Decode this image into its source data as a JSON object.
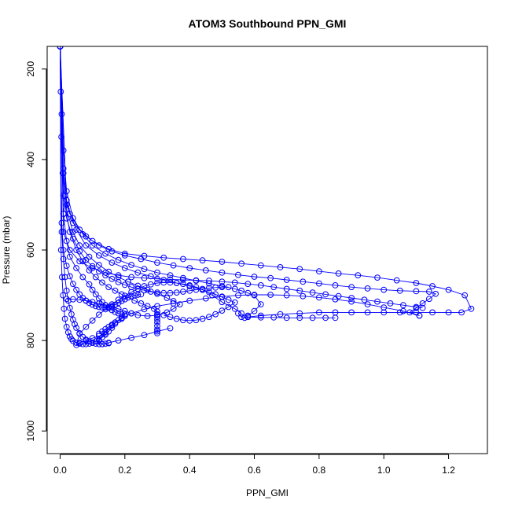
{
  "chart_data": {
    "type": "scatter",
    "title": "ATOM3 Southbound PPN_GMI",
    "xlabel": "PPN_GMI",
    "ylabel": "Pressure (mbar)",
    "xlim": [
      -0.04,
      1.32
    ],
    "ylim": [
      1050,
      150
    ],
    "y_reversed": true,
    "x_ticks": [
      0.0,
      0.2,
      0.4,
      0.6,
      0.8,
      1.0,
      1.2
    ],
    "x_tick_labels": [
      "0.0",
      "0.2",
      "0.4",
      "0.6",
      "0.8",
      "1.0",
      "1.2"
    ],
    "y_ticks": [
      200,
      400,
      600,
      800,
      1000
    ],
    "y_tick_labels": [
      "200",
      "400",
      "600",
      "800",
      "1000"
    ],
    "grid": false,
    "legend": "none",
    "marker": "open-circle",
    "connected": true,
    "color": "#0000ff",
    "series": [
      {
        "x": [
          0.0,
          0.002,
          0.004,
          0.008,
          0.015,
          0.03,
          0.06,
          0.1,
          0.15,
          0.2,
          0.26,
          0.32,
          0.38,
          0.44,
          0.5,
          0.56,
          0.62,
          0.68,
          0.74,
          0.8,
          0.86,
          0.92,
          0.98,
          1.04,
          1.1,
          1.15,
          1.2,
          1.25,
          1.27,
          1.24,
          1.2,
          1.15,
          1.1,
          1.05,
          1.0,
          0.95,
          0.9,
          0.85,
          0.8,
          0.74,
          0.68,
          0.62,
          0.58
        ],
        "y": [
          150,
          250,
          350,
          430,
          480,
          520,
          555,
          580,
          598,
          608,
          613,
          617,
          620,
          623,
          626,
          630,
          634,
          638,
          642,
          647,
          652,
          656,
          661,
          667,
          673,
          680,
          688,
          700,
          730,
          738,
          738,
          738,
          738,
          738,
          738,
          738,
          738,
          738,
          738,
          740,
          742,
          745,
          748
        ]
      },
      {
        "x": [
          0.58,
          0.62,
          0.66,
          0.7,
          0.74,
          0.78,
          0.82,
          0.85
        ],
        "y": [
          748,
          749,
          749,
          750,
          750,
          750,
          750,
          750
        ]
      },
      {
        "x": [
          0.0,
          0.005,
          0.01,
          0.02,
          0.04,
          0.08,
          0.12,
          0.16,
          0.2,
          0.25,
          0.3,
          0.35,
          0.4,
          0.45,
          0.5,
          0.55,
          0.6,
          0.65,
          0.7,
          0.75,
          0.8,
          0.85,
          0.9,
          0.95,
          1.0,
          1.05,
          1.1,
          1.14,
          1.16,
          1.14,
          1.12,
          1.1,
          1.08,
          1.11
        ],
        "y": [
          150,
          300,
          420,
          490,
          540,
          570,
          590,
          603,
          612,
          620,
          628,
          634,
          640,
          645,
          650,
          655,
          659,
          662,
          666,
          670,
          674,
          678,
          682,
          685,
          688,
          690,
          691,
          692,
          697,
          708,
          718,
          728,
          738,
          745
        ]
      },
      {
        "x": [
          1.11,
          1.06,
          1.0,
          0.95,
          0.9,
          0.85,
          0.8,
          0.75,
          0.7,
          0.65,
          0.6,
          0.55,
          0.5,
          0.45,
          0.4,
          0.35,
          0.3,
          0.26,
          0.22,
          0.19,
          0.16,
          0.14,
          0.12,
          0.13,
          0.15,
          0.18,
          0.22,
          0.26,
          0.3,
          0.34
        ],
        "y": [
          745,
          735,
          727,
          720,
          714,
          709,
          705,
          702,
          700,
          699,
          699,
          700,
          703,
          707,
          712,
          718,
          724,
          731,
          740,
          752,
          767,
          782,
          800,
          808,
          805,
          800,
          794,
          788,
          780,
          773
        ]
      },
      {
        "x": [
          0.0,
          0.01,
          0.02,
          0.04,
          0.07,
          0.1,
          0.14,
          0.18,
          0.22,
          0.26,
          0.3,
          0.34,
          0.38,
          0.42,
          0.46,
          0.5,
          0.54,
          0.56,
          0.58,
          0.6,
          0.62,
          0.6,
          0.58,
          0.57,
          0.56,
          0.55
        ],
        "y": [
          150,
          380,
          470,
          530,
          565,
          590,
          608,
          622,
          633,
          642,
          650,
          656,
          662,
          668,
          674,
          680,
          686,
          690,
          695,
          700,
          720,
          735,
          745,
          750,
          748,
          740
        ]
      },
      {
        "x": [
          0.56,
          0.54,
          0.5,
          0.47,
          0.44,
          0.42,
          0.4,
          0.38,
          0.36,
          0.34,
          0.32,
          0.3,
          0.28,
          0.26,
          0.24,
          0.22,
          0.2,
          0.18,
          0.16,
          0.14,
          0.12,
          0.1,
          0.08,
          0.06,
          0.05,
          0.06,
          0.08,
          0.1,
          0.12,
          0.14
        ],
        "y": [
          740,
          730,
          715,
          700,
          688,
          682,
          678,
          675,
          673,
          672,
          672,
          673,
          676,
          680,
          686,
          693,
          701,
          710,
          720,
          731,
          743,
          756,
          770,
          785,
          810,
          805,
          800,
          795,
          790,
          786
        ]
      },
      {
        "x": [
          0.0,
          0.02,
          0.05,
          0.08,
          0.12,
          0.16,
          0.2,
          0.24,
          0.28,
          0.32,
          0.36,
          0.4,
          0.44,
          0.46,
          0.48,
          0.5,
          0.52,
          0.54,
          0.52,
          0.5,
          0.48,
          0.46,
          0.44,
          0.42,
          0.4,
          0.38,
          0.36,
          0.34,
          0.32
        ],
        "y": [
          150,
          500,
          555,
          590,
          612,
          628,
          640,
          650,
          658,
          666,
          673,
          680,
          688,
          693,
          698,
          704,
          710,
          716,
          726,
          734,
          742,
          748,
          752,
          755,
          756,
          755,
          752,
          748,
          744
        ]
      },
      {
        "x": [
          0.0,
          0.02,
          0.04,
          0.06,
          0.09,
          0.12,
          0.15,
          0.18,
          0.21,
          0.24,
          0.27,
          0.3,
          0.33,
          0.35,
          0.37,
          0.35,
          0.33,
          0.3,
          0.27,
          0.24,
          0.22,
          0.2,
          0.18,
          0.16,
          0.14,
          0.12,
          0.1,
          0.08,
          0.06,
          0.04,
          0.02
        ],
        "y": [
          150,
          510,
          560,
          590,
          615,
          633,
          648,
          660,
          670,
          679,
          688,
          697,
          706,
          713,
          720,
          730,
          738,
          744,
          746,
          744,
          740,
          735,
          730,
          726,
          722,
          718,
          715,
          712,
          710,
          709,
          708
        ]
      },
      {
        "x": [
          0.0,
          0.01,
          0.03,
          0.05,
          0.07,
          0.09,
          0.11,
          0.13,
          0.15,
          0.17,
          0.19,
          0.21,
          0.23,
          0.25,
          0.27,
          0.29,
          0.3,
          0.3,
          0.3,
          0.3,
          0.3,
          0.3,
          0.3,
          0.3
        ],
        "y": [
          150,
          480,
          560,
          600,
          625,
          645,
          660,
          672,
          682,
          690,
          698,
          705,
          712,
          718,
          724,
          730,
          736,
          742,
          748,
          754,
          760,
          768,
          776,
          784
        ]
      },
      {
        "x": [
          0.0,
          0.01,
          0.02,
          0.04,
          0.06,
          0.08,
          0.1,
          0.12,
          0.14,
          0.16,
          0.18,
          0.2,
          0.22,
          0.24,
          0.26,
          0.28,
          0.3,
          0.32,
          0.34,
          0.36,
          0.38,
          0.4,
          0.42,
          0.44,
          0.46,
          0.48,
          0.5,
          0.52
        ],
        "y": [
          150,
          430,
          530,
          575,
          603,
          622,
          636,
          647,
          656,
          664,
          671,
          677,
          682,
          686,
          689,
          692,
          694,
          695,
          695,
          694,
          692,
          690,
          688,
          686,
          684,
          683,
          682,
          682
        ]
      },
      {
        "x": [
          0.0,
          0.01,
          0.02,
          0.03,
          0.05,
          0.07,
          0.09,
          0.1,
          0.11,
          0.12,
          0.13,
          0.14,
          0.15,
          0.16,
          0.17,
          0.18,
          0.19,
          0.2,
          0.2,
          0.19,
          0.18,
          0.17,
          0.16,
          0.15,
          0.14,
          0.13,
          0.12
        ],
        "y": [
          150,
          520,
          580,
          615,
          640,
          660,
          676,
          688,
          698,
          707,
          715,
          722,
          728,
          733,
          737,
          740,
          742,
          743,
          746,
          750,
          755,
          760,
          765,
          770,
          775,
          780,
          785
        ]
      },
      {
        "x": [
          0.0,
          0.005,
          0.01,
          0.02,
          0.03,
          0.04,
          0.05,
          0.06,
          0.07,
          0.08,
          0.09,
          0.1,
          0.11,
          0.12,
          0.13,
          0.14,
          0.15,
          0.16,
          0.17,
          0.18,
          0.19,
          0.2,
          0.21,
          0.22,
          0.23,
          0.24,
          0.25
        ],
        "y": [
          150,
          540,
          600,
          635,
          658,
          675,
          688,
          698,
          706,
          712,
          717,
          721,
          724,
          726,
          727,
          727,
          726,
          724,
          721,
          717,
          713,
          709,
          705,
          702,
          700,
          699,
          698
        ]
      },
      {
        "x": [
          0.0,
          0.005,
          0.01,
          0.015,
          0.02,
          0.025,
          0.03,
          0.035,
          0.04,
          0.045,
          0.05,
          0.06,
          0.07,
          0.08,
          0.09,
          0.1,
          0.11,
          0.12,
          0.13,
          0.14,
          0.15
        ],
        "y": [
          150,
          560,
          620,
          660,
          690,
          712,
          728,
          742,
          754,
          764,
          772,
          784,
          792,
          798,
          802,
          805,
          807,
          808,
          808,
          807,
          806
        ]
      },
      {
        "x": [
          0.0,
          0.003,
          0.006,
          0.009,
          0.012,
          0.015,
          0.02,
          0.025,
          0.03,
          0.035,
          0.04,
          0.05,
          0.06,
          0.07,
          0.08,
          0.09,
          0.1,
          0.11,
          0.12,
          0.13,
          0.14,
          0.15,
          0.16,
          0.17
        ],
        "y": [
          150,
          600,
          660,
          700,
          730,
          752,
          770,
          782,
          791,
          797,
          801,
          805,
          807,
          808,
          808,
          807,
          805,
          802,
          798,
          793,
          787,
          780,
          772,
          763
        ]
      },
      {
        "x": [
          0.0,
          0.01,
          0.03,
          0.06,
          0.1,
          0.14,
          0.18,
          0.22,
          0.26,
          0.3,
          0.34,
          0.38,
          0.42,
          0.46,
          0.5,
          0.54,
          0.58,
          0.62,
          0.66,
          0.7,
          0.74,
          0.78,
          0.82,
          0.86,
          0.9,
          0.94,
          0.98,
          1.02,
          1.06,
          1.1,
          1.12
        ],
        "y": [
          150,
          560,
          600,
          625,
          640,
          650,
          656,
          660,
          662,
          664,
          665,
          666,
          667,
          668,
          670,
          672,
          675,
          678,
          682,
          686,
          690,
          694,
          698,
          702,
          706,
          710,
          714,
          718,
          722,
          726,
          728
        ]
      }
    ]
  }
}
